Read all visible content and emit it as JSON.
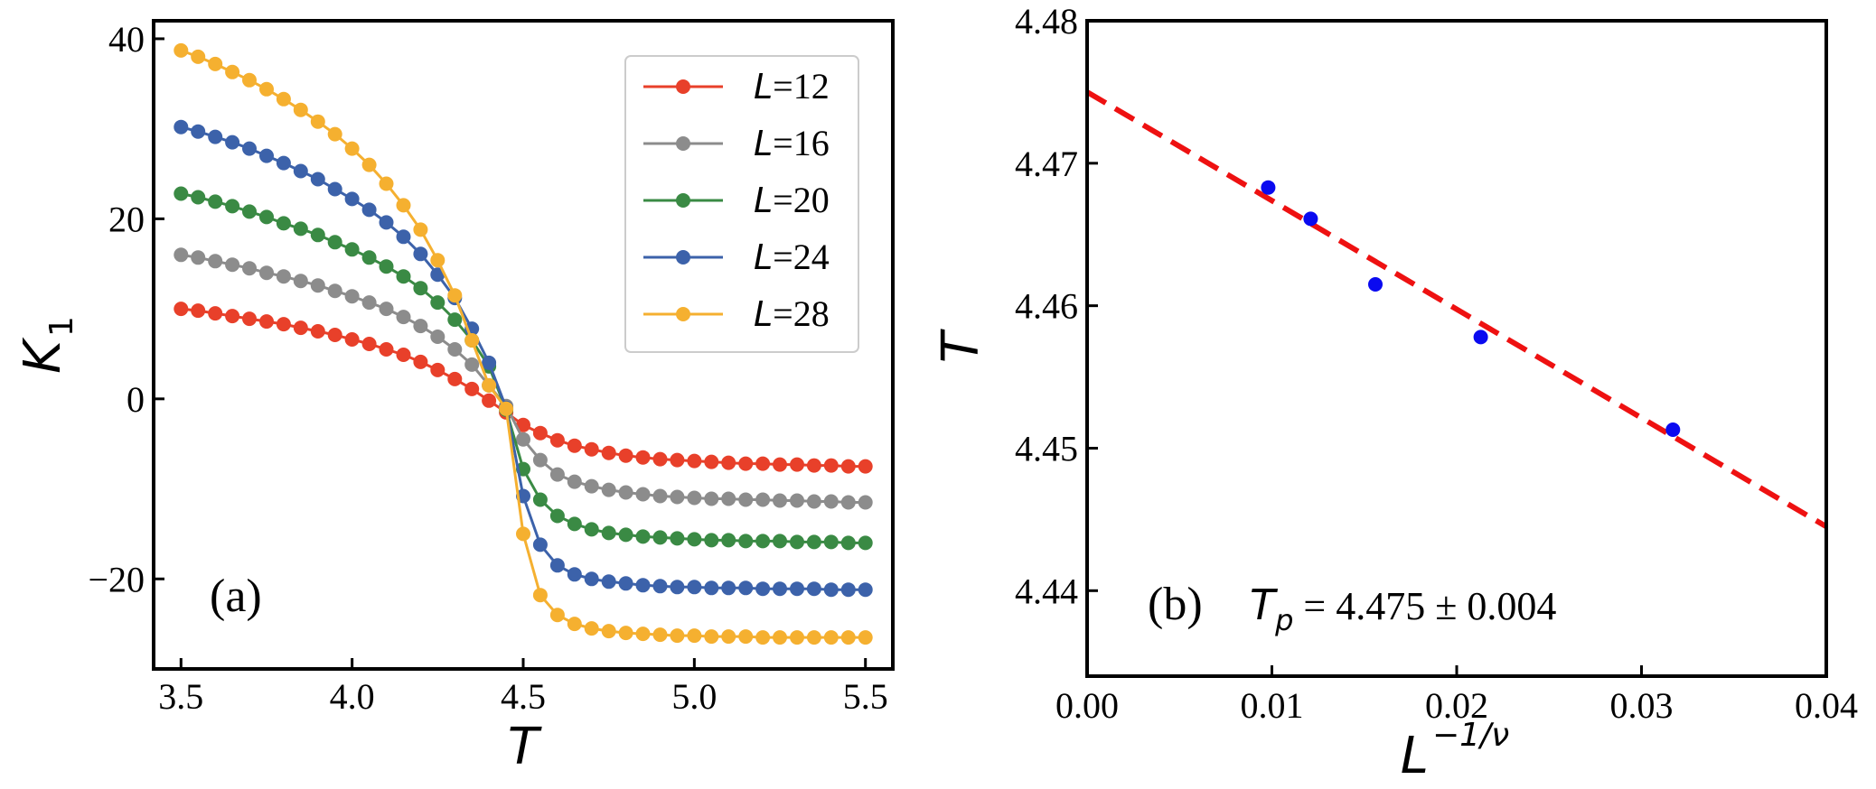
{
  "chart_data": [
    {
      "type": "line",
      "panel_label": "(a)",
      "xlabel": "T",
      "ylabel_main": "K",
      "ylabel_sub": "1",
      "xlim": [
        3.42,
        5.58
      ],
      "ylim": [
        -30,
        42
      ],
      "xticks": [
        3.5,
        4.0,
        4.5,
        5.0,
        5.5
      ],
      "xtick_labels": [
        "3.5",
        "4.0",
        "4.5",
        "5.0",
        "5.5"
      ],
      "yticks": [
        -20,
        0,
        20,
        40
      ],
      "ytick_labels": [
        "−20",
        "0",
        "20",
        "40"
      ],
      "legend": {
        "placement": "top-right",
        "prefix": "L",
        "sep": "="
      },
      "x": [
        3.5,
        3.55,
        3.6,
        3.65,
        3.7,
        3.75,
        3.8,
        3.85,
        3.9,
        3.95,
        4.0,
        4.05,
        4.1,
        4.15,
        4.2,
        4.25,
        4.3,
        4.35,
        4.4,
        4.45,
        4.5,
        4.55,
        4.6,
        4.65,
        4.7,
        4.75,
        4.8,
        4.85,
        4.9,
        4.95,
        5.0,
        5.05,
        5.1,
        5.15,
        5.2,
        5.25,
        5.3,
        5.35,
        5.4,
        5.45,
        5.5
      ],
      "series": [
        {
          "name": "12",
          "color": "#e8402a",
          "values": [
            10.0,
            9.8,
            9.5,
            9.2,
            8.9,
            8.6,
            8.3,
            7.9,
            7.5,
            7.1,
            6.6,
            6.1,
            5.5,
            4.9,
            4.1,
            3.2,
            2.2,
            1.1,
            -0.2,
            -1.5,
            -2.9,
            -3.8,
            -4.6,
            -5.2,
            -5.6,
            -6.0,
            -6.3,
            -6.5,
            -6.7,
            -6.8,
            -6.9,
            -7.0,
            -7.1,
            -7.2,
            -7.2,
            -7.3,
            -7.3,
            -7.4,
            -7.4,
            -7.5,
            -7.5
          ]
        },
        {
          "name": "16",
          "color": "#8c8c8c",
          "values": [
            16.0,
            15.7,
            15.3,
            14.9,
            14.5,
            14.0,
            13.6,
            13.1,
            12.6,
            12.0,
            11.4,
            10.7,
            10.0,
            9.1,
            8.1,
            6.9,
            5.5,
            3.8,
            1.5,
            -0.8,
            -4.5,
            -6.8,
            -8.4,
            -9.2,
            -9.7,
            -10.1,
            -10.4,
            -10.6,
            -10.8,
            -10.9,
            -11.0,
            -11.1,
            -11.1,
            -11.2,
            -11.2,
            -11.3,
            -11.3,
            -11.4,
            -11.4,
            -11.5,
            -11.5
          ]
        },
        {
          "name": "20",
          "color": "#3a8a44",
          "values": [
            22.8,
            22.4,
            21.9,
            21.4,
            20.8,
            20.2,
            19.5,
            18.9,
            18.2,
            17.4,
            16.6,
            15.7,
            14.7,
            13.6,
            12.3,
            10.7,
            8.8,
            6.5,
            3.6,
            -1.2,
            -7.8,
            -11.2,
            -13.0,
            -13.9,
            -14.5,
            -14.9,
            -15.1,
            -15.3,
            -15.4,
            -15.5,
            -15.6,
            -15.7,
            -15.7,
            -15.8,
            -15.8,
            -15.8,
            -15.9,
            -15.9,
            -15.9,
            -16.0,
            -16.0
          ]
        },
        {
          "name": "24",
          "color": "#3c62aa",
          "values": [
            30.2,
            29.7,
            29.1,
            28.5,
            27.8,
            27.0,
            26.2,
            25.3,
            24.4,
            23.3,
            22.2,
            21.0,
            19.6,
            18.0,
            16.1,
            13.8,
            11.2,
            7.8,
            4.0,
            -1.0,
            -10.8,
            -16.2,
            -18.5,
            -19.5,
            -20.0,
            -20.3,
            -20.5,
            -20.7,
            -20.8,
            -20.9,
            -20.9,
            -21.0,
            -21.0,
            -21.0,
            -21.1,
            -21.1,
            -21.1,
            -21.1,
            -21.2,
            -21.2,
            -21.2
          ]
        },
        {
          "name": "28",
          "color": "#f5b030",
          "values": [
            38.7,
            38.0,
            37.2,
            36.3,
            35.4,
            34.4,
            33.3,
            32.1,
            30.8,
            29.4,
            27.8,
            26.0,
            23.9,
            21.5,
            18.8,
            15.4,
            11.5,
            6.5,
            1.5,
            -1.1,
            -15.0,
            -21.8,
            -24.0,
            -25.0,
            -25.5,
            -25.8,
            -26.0,
            -26.1,
            -26.2,
            -26.3,
            -26.3,
            -26.4,
            -26.4,
            -26.4,
            -26.5,
            -26.5,
            -26.5,
            -26.5,
            -26.5,
            -26.5,
            -26.5
          ]
        }
      ]
    },
    {
      "type": "scatter",
      "panel_label": "(b)",
      "xlabel_main": "L",
      "xlabel_sup": "−1/ν",
      "ylabel": "T",
      "xlim": [
        0.0,
        0.04
      ],
      "ylim": [
        4.434,
        4.48
      ],
      "xticks": [
        0.0,
        0.01,
        0.02,
        0.03,
        0.04
      ],
      "xtick_labels": [
        "0.00",
        "0.01",
        "0.02",
        "0.03",
        "0.04"
      ],
      "yticks": [
        4.44,
        4.45,
        4.46,
        4.47,
        4.48
      ],
      "ytick_labels": [
        "4.44",
        "4.45",
        "4.46",
        "4.47",
        "4.48"
      ],
      "points": {
        "color": "#0a0af0",
        "x": [
          0.0098,
          0.0121,
          0.0156,
          0.0213,
          0.0317
        ],
        "y": [
          4.4683,
          4.4661,
          4.4615,
          4.4578,
          4.4513
        ]
      },
      "fit": {
        "color": "#ee1111",
        "style": "dashed",
        "x": [
          0.0,
          0.04
        ],
        "y": [
          4.475,
          4.4445
        ]
      },
      "annotation": {
        "symbol": "T",
        "subscript": "p",
        "text": " = 4.475 ± 0.004"
      }
    }
  ]
}
